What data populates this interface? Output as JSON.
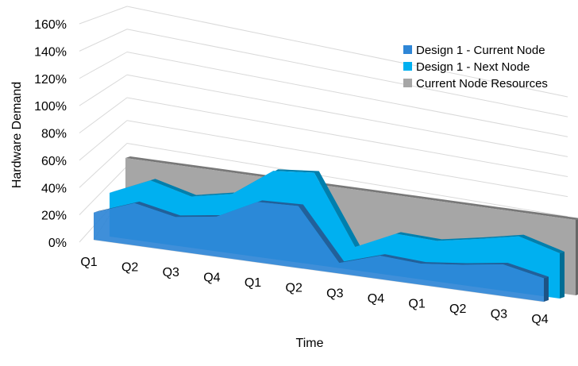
{
  "chart_data": {
    "type": "area",
    "style": "3d",
    "title": "",
    "xlabel": "Time",
    "ylabel": "Hardware Demand",
    "ylim": [
      0,
      160
    ],
    "yticks": [
      "0%",
      "20%",
      "40%",
      "60%",
      "80%",
      "100%",
      "120%",
      "140%",
      "160%"
    ],
    "categories": [
      "Q1",
      "Q2",
      "Q3",
      "Q4",
      "Q1",
      "Q2",
      "Q3",
      "Q4",
      "Q1",
      "Q2",
      "Q3",
      "Q4"
    ],
    "legend_position": "top-right",
    "grid": true,
    "series": [
      {
        "name": "Design 1 - Current Node",
        "color": "#2F86D6",
        "values": [
          36,
          56,
          45,
          53,
          80,
          82,
          14,
          31,
          28,
          34,
          42,
          31
        ]
      },
      {
        "name": "Design 1 - Next Node",
        "color": "#00B0F0",
        "values": [
          58,
          82,
          68,
          79,
          117,
          122,
          31,
          56,
          54,
          64,
          75,
          60
        ]
      },
      {
        "name": "Current Node Resources",
        "color": "#A6A6A6",
        "values": [
          100,
          100,
          100,
          100,
          100,
          100,
          100,
          100,
          100,
          100,
          100,
          100
        ]
      }
    ]
  }
}
